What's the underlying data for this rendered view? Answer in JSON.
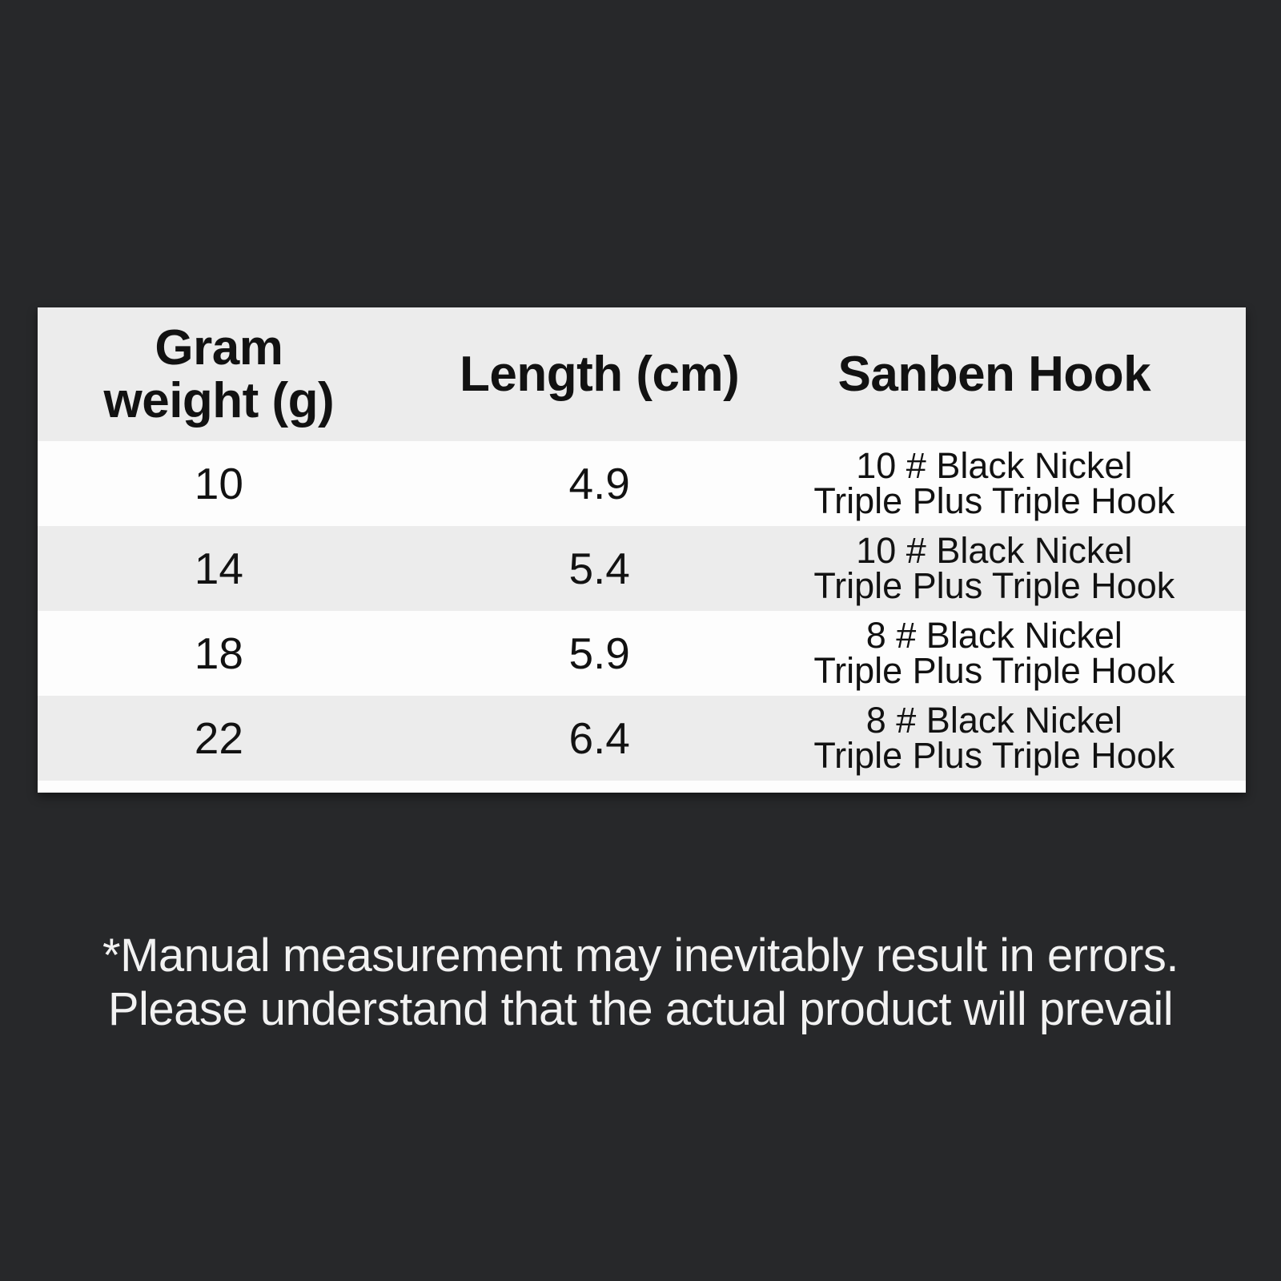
{
  "colors": {
    "background": "#27282a",
    "panel_white": "#fdfdfd",
    "stripe_gray": "#ececec",
    "table_text": "#121212",
    "disclaimer_text": "#f2f2f2"
  },
  "table": {
    "headers": [
      {
        "lines": [
          "Gram",
          "weight (g)"
        ]
      },
      {
        "lines": [
          "Length (cm)"
        ]
      },
      {
        "lines": [
          "Sanben Hook"
        ]
      }
    ],
    "rows": [
      {
        "weight": "10",
        "length": "4.9",
        "hook_lines": [
          "10 # Black Nickel",
          "Triple Plus Triple Hook"
        ]
      },
      {
        "weight": "14",
        "length": "5.4",
        "hook_lines": [
          "10 # Black Nickel",
          "Triple Plus Triple Hook"
        ]
      },
      {
        "weight": "18",
        "length": "5.9",
        "hook_lines": [
          "8 # Black Nickel",
          "Triple Plus Triple Hook"
        ]
      },
      {
        "weight": "22",
        "length": "6.4",
        "hook_lines": [
          "8 # Black Nickel",
          "Triple Plus Triple Hook"
        ]
      }
    ]
  },
  "disclaimer": {
    "line1": "*Manual measurement may inevitably result in errors.",
    "line2": "Please understand that the actual product will prevail"
  },
  "chart_data": {
    "type": "table",
    "columns": [
      "Gram weight (g)",
      "Length (cm)",
      "Sanben Hook"
    ],
    "rows": [
      [
        "10",
        "4.9",
        "10 # Black Nickel Triple Plus Triple Hook"
      ],
      [
        "14",
        "5.4",
        "10 # Black Nickel Triple Plus Triple Hook"
      ],
      [
        "18",
        "5.9",
        "8 # Black Nickel Triple Plus Triple Hook"
      ],
      [
        "22",
        "6.4",
        "8 # Black Nickel Triple Plus Triple Hook"
      ]
    ],
    "note": "*Manual measurement may inevitably result in errors. Please understand that the actual product will prevail"
  }
}
